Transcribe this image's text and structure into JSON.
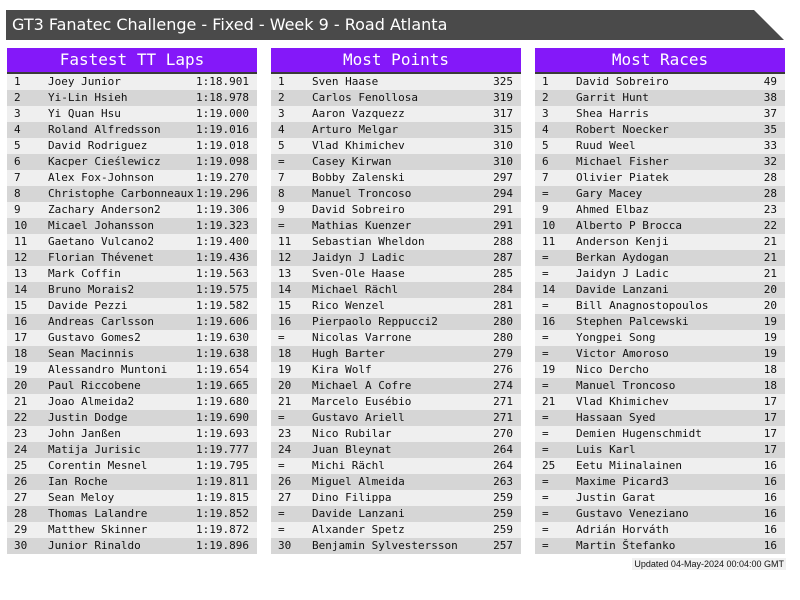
{
  "title": "GT3 Fanatec Challenge - Fixed - Week 9 - Road Atlanta",
  "colors": {
    "header": "#8418f9",
    "titlebar": "#4a4a4a",
    "row_light": "#efefef",
    "row_dark": "#d6d6d6"
  },
  "panels": [
    {
      "title": "Fastest TT Laps",
      "rows": [
        [
          "1",
          "Joey Junior",
          "1:18.901"
        ],
        [
          "2",
          "Yi-Lin Hsieh",
          "1:18.978"
        ],
        [
          "3",
          "Yi Quan Hsu",
          "1:19.000"
        ],
        [
          "4",
          "Roland Alfredsson",
          "1:19.016"
        ],
        [
          "5",
          "David Rodriguez",
          "1:19.018"
        ],
        [
          "6",
          "Kacper Cieślewicz",
          "1:19.098"
        ],
        [
          "7",
          "Alex Fox-Johnson",
          "1:19.270"
        ],
        [
          "8",
          "Christophe Carbonneaux",
          "1:19.296"
        ],
        [
          "9",
          "Zachary Anderson2",
          "1:19.306"
        ],
        [
          "10",
          "Micael Johansson",
          "1:19.323"
        ],
        [
          "11",
          "Gaetano Vulcano2",
          "1:19.400"
        ],
        [
          "12",
          "Florian Thévenet",
          "1:19.436"
        ],
        [
          "13",
          "Mark Coffin",
          "1:19.563"
        ],
        [
          "14",
          "Bruno Morais2",
          "1:19.575"
        ],
        [
          "15",
          "Davide Pezzi",
          "1:19.582"
        ],
        [
          "16",
          "Andreas Carlsson",
          "1:19.606"
        ],
        [
          "17",
          "Gustavo Gomes2",
          "1:19.630"
        ],
        [
          "18",
          "Sean Macinnis",
          "1:19.638"
        ],
        [
          "19",
          "Alessandro Muntoni",
          "1:19.654"
        ],
        [
          "20",
          "Paul Riccobene",
          "1:19.665"
        ],
        [
          "21",
          "Joao Almeida2",
          "1:19.680"
        ],
        [
          "22",
          "Justin Dodge",
          "1:19.690"
        ],
        [
          "23",
          "John Janßen",
          "1:19.693"
        ],
        [
          "24",
          "Matija Jurisic",
          "1:19.777"
        ],
        [
          "25",
          "Corentin Mesnel",
          "1:19.795"
        ],
        [
          "26",
          "Ian Roche",
          "1:19.811"
        ],
        [
          "27",
          "Sean Meloy",
          "1:19.815"
        ],
        [
          "28",
          "Thomas Lalandre",
          "1:19.852"
        ],
        [
          "29",
          "Matthew Skinner",
          "1:19.872"
        ],
        [
          "30",
          "Junior Rinaldo",
          "1:19.896"
        ]
      ]
    },
    {
      "title": "Most Points",
      "rows": [
        [
          "1",
          "Sven Haase",
          "325"
        ],
        [
          "2",
          "Carlos Fenollosa",
          "319"
        ],
        [
          "3",
          "Aaron Vazquezz",
          "317"
        ],
        [
          "4",
          "Arturo Melgar",
          "315"
        ],
        [
          "5",
          "Vlad Khimichev",
          "310"
        ],
        [
          "=",
          "Casey Kirwan",
          "310"
        ],
        [
          "7",
          "Bobby Zalenski",
          "297"
        ],
        [
          "8",
          "Manuel Troncoso",
          "294"
        ],
        [
          "9",
          "David Sobreiro",
          "291"
        ],
        [
          "=",
          "Mathias Kuenzer",
          "291"
        ],
        [
          "11",
          "Sebastian Wheldon",
          "288"
        ],
        [
          "12",
          "Jaidyn J Ladic",
          "287"
        ],
        [
          "13",
          "Sven-Ole Haase",
          "285"
        ],
        [
          "14",
          "Michael Rächl",
          "284"
        ],
        [
          "15",
          "Rico Wenzel",
          "281"
        ],
        [
          "16",
          "Pierpaolo Reppucci2",
          "280"
        ],
        [
          "=",
          "Nicolas Varrone",
          "280"
        ],
        [
          "18",
          "Hugh Barter",
          "279"
        ],
        [
          "19",
          "Kira Wolf",
          "276"
        ],
        [
          "20",
          "Michael A Cofre",
          "274"
        ],
        [
          "21",
          "Marcelo Eusébio",
          "271"
        ],
        [
          "=",
          "Gustavo Ariell",
          "271"
        ],
        [
          "23",
          "Nico Rubilar",
          "270"
        ],
        [
          "24",
          "Juan Bleynat",
          "264"
        ],
        [
          "=",
          "Michi Rächl",
          "264"
        ],
        [
          "26",
          "Miguel Almeida",
          "263"
        ],
        [
          "27",
          "Dino Filippa",
          "259"
        ],
        [
          "=",
          "Davide Lanzani",
          "259"
        ],
        [
          "=",
          "Alxander Spetz",
          "259"
        ],
        [
          "30",
          "Benjamin Sylvestersson",
          "257"
        ]
      ]
    },
    {
      "title": "Most Races",
      "rows": [
        [
          "1",
          "David Sobreiro",
          "49"
        ],
        [
          "2",
          "Garrit Hunt",
          "38"
        ],
        [
          "3",
          "Shea Harris",
          "37"
        ],
        [
          "4",
          "Robert Noecker",
          "35"
        ],
        [
          "5",
          "Ruud Weel",
          "33"
        ],
        [
          "6",
          "Michael Fisher",
          "32"
        ],
        [
          "7",
          "Olivier Piatek",
          "28"
        ],
        [
          "=",
          "Gary Macey",
          "28"
        ],
        [
          "9",
          "Ahmed Elbaz",
          "23"
        ],
        [
          "10",
          "Alberto P Brocca",
          "22"
        ],
        [
          "11",
          "Anderson Kenji",
          "21"
        ],
        [
          "=",
          "Berkan Aydogan",
          "21"
        ],
        [
          "=",
          "Jaidyn J Ladic",
          "21"
        ],
        [
          "14",
          "Davide Lanzani",
          "20"
        ],
        [
          "=",
          "Bill Anagnostopoulos",
          "20"
        ],
        [
          "16",
          "Stephen Palcewski",
          "19"
        ],
        [
          "=",
          "Yongpei Song",
          "19"
        ],
        [
          "=",
          "Victor Amoroso",
          "19"
        ],
        [
          "19",
          "Nico Dercho",
          "18"
        ],
        [
          "=",
          "Manuel Troncoso",
          "18"
        ],
        [
          "21",
          "Vlad Khimichev",
          "17"
        ],
        [
          "=",
          "Hassaan Syed",
          "17"
        ],
        [
          "=",
          "Demien Hugenschmidt",
          "17"
        ],
        [
          "=",
          "Luis Karl",
          "17"
        ],
        [
          "25",
          "Eetu Miinalainen",
          "16"
        ],
        [
          "=",
          "Maxime Picard3",
          "16"
        ],
        [
          "=",
          "Justin Garat",
          "16"
        ],
        [
          "=",
          "Gustavo Veneziano",
          "16"
        ],
        [
          "=",
          "Adrián Horváth",
          "16"
        ],
        [
          "=",
          "Martin Štefanko",
          "16"
        ]
      ]
    }
  ],
  "footer": "Updated 04-May-2024 00:04:00 GMT"
}
